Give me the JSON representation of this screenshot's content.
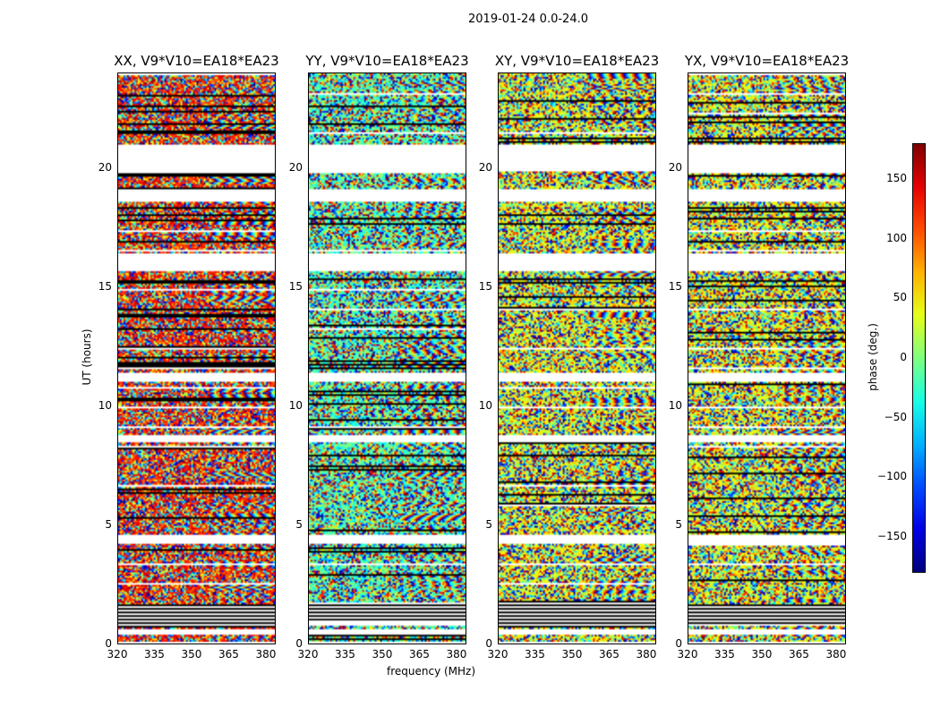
{
  "chart_data": {
    "type": "heatmap",
    "title": "2019-01-24 0.0-24.0",
    "xlabel": "frequency (MHz)",
    "ylabel": "UT (hours)",
    "xlim": [
      320,
      384
    ],
    "ylim": [
      0,
      24
    ],
    "xticks": [
      "320",
      "335",
      "350",
      "365",
      "380"
    ],
    "xtick_values": [
      320,
      335,
      350,
      365,
      380
    ],
    "yticks": [
      "0",
      "5",
      "10",
      "15",
      "20"
    ],
    "ytick_values": [
      0,
      5,
      10,
      15,
      20
    ],
    "panels": [
      {
        "title": "XX, V9*V10=EA18*EA23"
      },
      {
        "title": "YY, V9*V10=EA18*EA23"
      },
      {
        "title": "XY, V9*V10=EA18*EA23"
      },
      {
        "title": "YX, V9*V10=EA18*EA23"
      }
    ],
    "flagged_ut_ranges": [
      [
        0.35,
        0.6
      ],
      [
        19.9,
        21.0
      ],
      [
        18.6,
        19.1
      ],
      [
        15.7,
        16.4
      ],
      [
        11.05,
        11.4
      ],
      [
        8.45,
        8.8
      ],
      [
        4.2,
        4.6
      ]
    ],
    "masked_ut_ranges": [
      [
        0.75,
        1.65
      ]
    ],
    "colorbar": {
      "label": "phase (deg.)",
      "range": [
        -180,
        180
      ],
      "ticks": [
        "150",
        "100",
        "50",
        "0",
        "−50",
        "−100",
        "−150"
      ],
      "tick_values": [
        150,
        100,
        50,
        0,
        -50,
        -100,
        -150
      ],
      "colormap": "jet"
    }
  }
}
